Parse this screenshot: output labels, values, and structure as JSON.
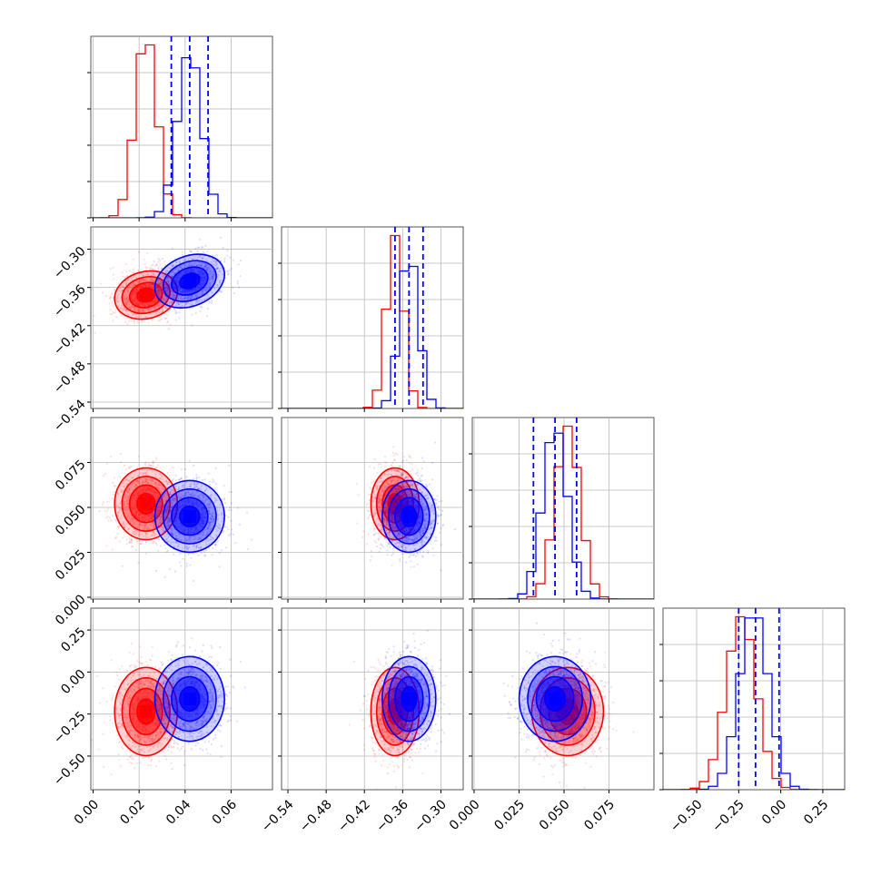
{
  "colors": {
    "red": "#ff0000",
    "blue": "#0000ff"
  },
  "chart_data": {
    "type": "corner",
    "parameters": 4,
    "grid": true,
    "series": [
      {
        "color": "red",
        "mean": [
          0.023,
          -0.372,
          0.052,
          -0.235
        ],
        "sd": [
          0.0065,
          0.018,
          0.0095,
          0.125
        ],
        "corr": {
          "1-0": 0.15,
          "2-0": 0.0,
          "2-1": 0.0,
          "3-0": 0.0,
          "3-1": 0.0,
          "3-2": 0.0
        }
      },
      {
        "color": "blue",
        "mean": [
          0.042,
          -0.35,
          0.045,
          -0.16
        ],
        "sd": [
          0.0072,
          0.02,
          0.0095,
          0.12
        ],
        "corr": {
          "1-0": 0.25,
          "2-0": 0.0,
          "2-1": 0.0,
          "3-0": 0.0,
          "3-1": 0.0,
          "3-2": 0.0
        }
      }
    ],
    "quantile_lines": [
      [
        0.034,
        0.042,
        0.05
      ],
      [
        -0.372,
        -0.35,
        -0.328
      ],
      [
        0.033,
        0.045,
        0.057
      ],
      [
        -0.25,
        -0.15,
        -0.01
      ]
    ],
    "ranges": [
      [
        -0.001,
        0.078
      ],
      [
        -0.55,
        -0.265
      ],
      [
        -0.001,
        0.1
      ],
      [
        -0.7,
        0.38
      ]
    ],
    "yranges": [
      [
        -0.55,
        -0.265
      ],
      [
        -0.001,
        0.1
      ],
      [
        -0.7,
        0.38
      ]
    ],
    "y_ticks": [
      [
        -0.3,
        -0.36,
        -0.42,
        -0.48,
        -0.54
      ],
      [
        0.075,
        0.05,
        0.025,
        0.0
      ],
      [
        0.25,
        0.0,
        -0.25,
        -0.5
      ]
    ],
    "y_tick_labels": [
      [
        "−0.30",
        "−0.36",
        "−0.42",
        "−0.48",
        "−0.54"
      ],
      [
        "0.075",
        "0.050",
        "0.025",
        "0.000"
      ],
      [
        "0.25",
        "0.00",
        "−0.25",
        "−0.50"
      ]
    ],
    "x_ticks": [
      [
        0.0,
        0.02,
        0.04,
        0.06
      ],
      [
        -0.54,
        -0.48,
        -0.42,
        -0.36,
        -0.3
      ],
      [
        0.0,
        0.025,
        0.05,
        0.075
      ],
      [
        -0.5,
        -0.25,
        0.0,
        0.25
      ]
    ],
    "x_tick_labels": [
      [
        "0.00",
        "0.02",
        "0.04",
        "0.06"
      ],
      [
        "−0.54",
        "−0.48",
        "−0.42",
        "−0.36",
        "−0.30"
      ],
      [
        "0.000",
        "0.025",
        "0.050",
        "0.075"
      ],
      [
        "−0.50",
        "−0.25",
        "0.00",
        "0.25"
      ]
    ]
  }
}
